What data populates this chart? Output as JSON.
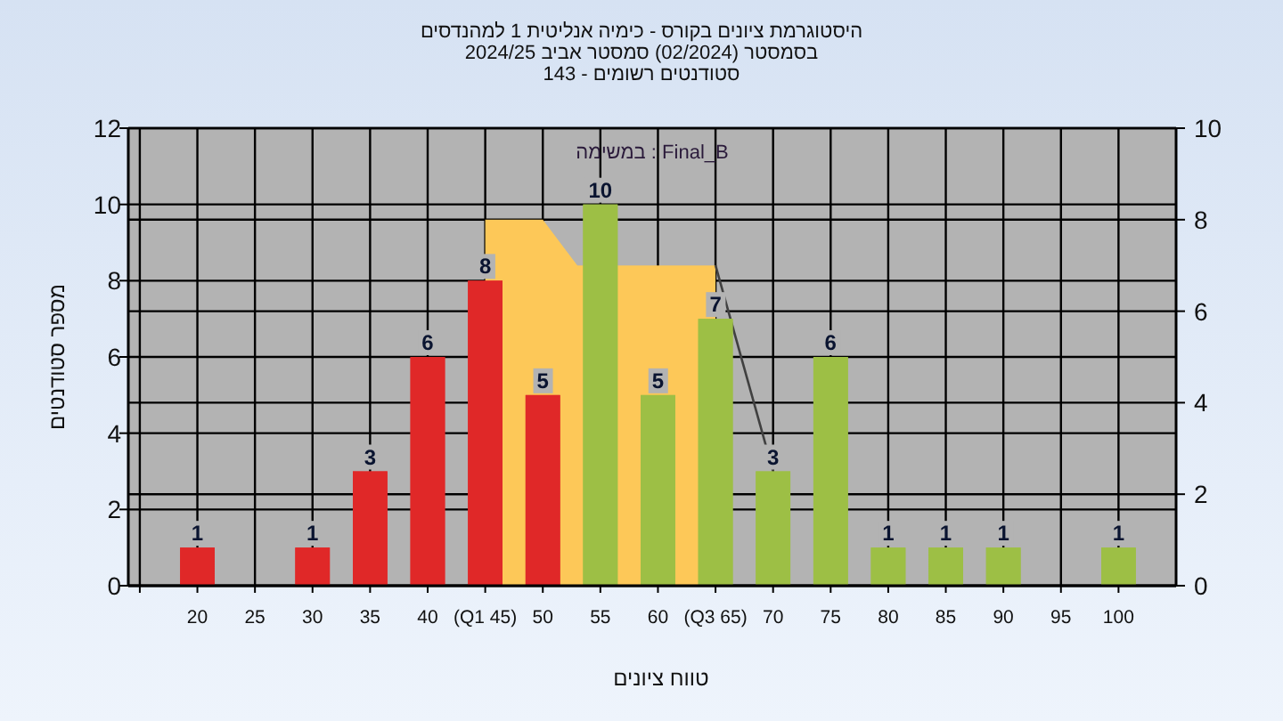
{
  "chart_data": {
    "type": "bar",
    "title": "היסטוגרמת ציונים בקורס - כימיה אנליטית 1 למהנדסים",
    "subtitle": "בסמסטר (02/2024) סמסטר אביב 2024/25\nסטודנטים רשומים - 143",
    "xlabel": "טווח ציונים",
    "ylabel": "מספר סטודנטים",
    "annotations": [
      "במשימה : Final_B"
    ],
    "x": [
      20,
      25,
      30,
      35,
      40,
      45,
      50,
      55,
      60,
      65,
      70,
      75,
      80,
      85,
      90,
      95,
      100
    ],
    "values": [
      1,
      0,
      1,
      3,
      6,
      8,
      5,
      10,
      5,
      7,
      3,
      6,
      1,
      1,
      1,
      0,
      1
    ],
    "colors": [
      "#e02828",
      "#e02828",
      "#e02828",
      "#e02828",
      "#e02828",
      "#e02828",
      "#e02828",
      "#9dbf45",
      "#9dbf45",
      "#9dbf45",
      "#9dbf45",
      "#9dbf45",
      "#9dbf45",
      "#9dbf45",
      "#9dbf45",
      "#9dbf45",
      "#9dbf45"
    ],
    "value_labels": [
      "1",
      null,
      "1",
      "3",
      "6",
      "8",
      "5",
      "10",
      "5",
      "7",
      "3",
      "6",
      "1",
      "1",
      "1",
      null,
      "1"
    ],
    "series": [
      {
        "type": "area",
        "axis": "y2",
        "color": "#fdc858",
        "x": [
          45,
          50,
          53,
          65
        ],
        "values": [
          8,
          8,
          7,
          7
        ]
      },
      {
        "type": "line",
        "axis": "y2",
        "color": "#404040",
        "x": [
          65,
          70
        ],
        "values": [
          7,
          2.5
        ]
      }
    ],
    "xlim": [
      14,
      105
    ],
    "xticks": [
      {
        "value": 15,
        "label": null
      },
      20,
      25,
      30,
      35,
      40,
      {
        "value": 45,
        "label": "(Q1 45)"
      },
      50,
      55,
      60,
      {
        "value": 65,
        "label": "(Q3 65)"
      },
      70,
      75,
      80,
      85,
      90,
      95,
      100
    ],
    "ylim": [
      0,
      12
    ],
    "yticks": [
      0,
      2,
      4,
      6,
      8,
      10,
      12
    ],
    "y2lim": [
      0,
      10
    ],
    "y2ticks": [
      0,
      2,
      4,
      6,
      8,
      10
    ],
    "grid": true
  }
}
